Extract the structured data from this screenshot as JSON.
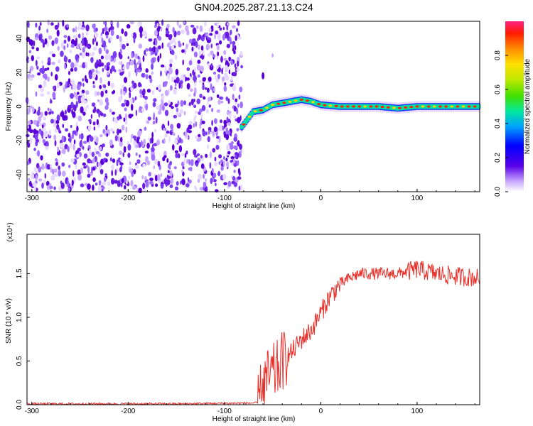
{
  "title": "GN04.2025.287.21.13.C24",
  "colors": {
    "snr_line": "#e8302a",
    "noise_purple": "#6a1be0",
    "frame": "#000000"
  },
  "chart_data": [
    {
      "type": "heatmap",
      "xlabel": "Height of straight line (km)",
      "ylabel": "Frequency (Hz)",
      "xlim": [
        -305,
        165
      ],
      "ylim": [
        -50,
        50
      ],
      "xticks": [
        "-300",
        "-200",
        "-100",
        "0",
        "100"
      ],
      "yticks": [
        "40",
        "20",
        "0",
        "-20",
        "-40"
      ],
      "colorbar_label": "Normalized spectral amplitude",
      "colorbar_ticks": [
        "0.0",
        "0.2",
        "0.4",
        "0.6",
        "0.8"
      ],
      "noise_region_x": [
        -305,
        -82
      ],
      "signal_track": {
        "x": [
          -82,
          -70,
          -60,
          -50,
          -40,
          -30,
          -20,
          -10,
          0,
          20,
          40,
          60,
          80,
          100,
          120,
          140,
          165
        ],
        "freq": [
          -12,
          -3,
          -2,
          1,
          2,
          3,
          4,
          3,
          1,
          0,
          0,
          0,
          -1,
          0,
          0,
          0,
          0
        ]
      }
    },
    {
      "type": "line",
      "xlabel": "Height of straight line (km)",
      "ylabel": "SNR (10 * v/v)",
      "y_multiplier": "(x10⁴)",
      "xlim": [
        -305,
        165
      ],
      "ylim": [
        0,
        1.95
      ],
      "xticks": [
        "-300",
        "-200",
        "-100",
        "0",
        "100"
      ],
      "yticks": [
        "1.5",
        "1.0",
        "0.5",
        "0.0"
      ],
      "series": [
        {
          "x": [
            -305,
            -150,
            -65,
            -60,
            -55,
            -50,
            -45,
            -40,
            -30,
            -20,
            -10,
            0,
            10,
            20,
            30,
            40,
            60,
            80,
            100,
            120,
            140,
            165
          ],
          "y": [
            0.01,
            0.01,
            0.02,
            0.25,
            0.3,
            0.35,
            0.4,
            0.5,
            0.6,
            0.75,
            0.85,
            1.05,
            1.25,
            1.38,
            1.45,
            1.5,
            1.5,
            1.5,
            1.55,
            1.5,
            1.47,
            1.45
          ]
        }
      ]
    }
  ]
}
